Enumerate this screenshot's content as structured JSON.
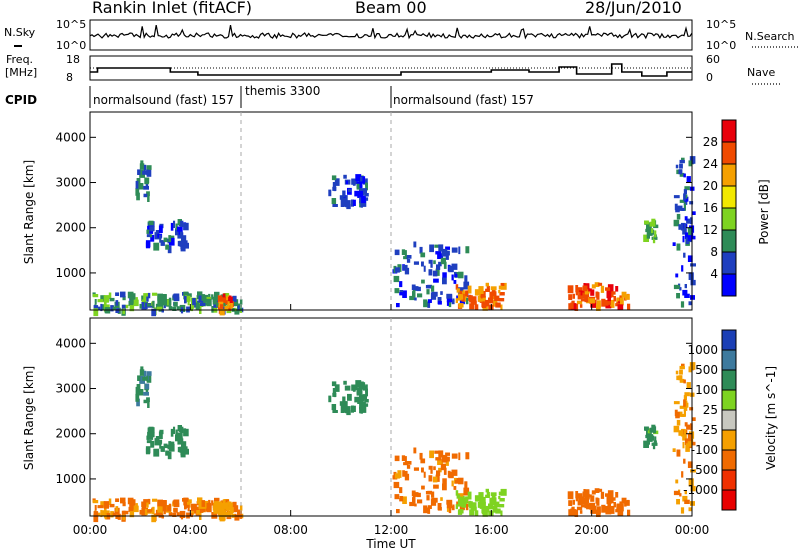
{
  "header": {
    "station": "Rankin Inlet (fitACF)",
    "beam": "Beam 00",
    "date": "28/Jun/2010"
  },
  "noise_panel": {
    "left_label": "N.Sky",
    "right_label": "N.Search",
    "left_ticks": [
      "10^5",
      "10^0"
    ],
    "right_ticks": [
      "10^5",
      "10^0"
    ]
  },
  "freq_panel": {
    "left_label": "Freq.",
    "left_unit": "[MHz]",
    "right_label": "Nave",
    "left_ticks": [
      "18",
      "8"
    ],
    "right_ticks": [
      "60",
      "0"
    ]
  },
  "cpid_panel": {
    "label": "CPID",
    "segments": [
      {
        "start_hour": 0,
        "end_hour": 6,
        "name": "normalsound (fast) 157"
      },
      {
        "start_hour": 6,
        "end_hour": 12,
        "name": "themis 3300"
      },
      {
        "start_hour": 12,
        "end_hour": 24,
        "name": "normalsound (fast) 157"
      }
    ]
  },
  "power_colorbar": {
    "title": "Power [dB]",
    "labels": [
      "28",
      "24",
      "20",
      "16",
      "12",
      "8",
      "4"
    ],
    "colors": [
      "#e8000b",
      "#f04a00",
      "#f5a000",
      "#f2e800",
      "#7ed321",
      "#2e8b57",
      "#1f3fbf",
      "#0000ff"
    ]
  },
  "velocity_colorbar": {
    "title": "Velocity [m s^-1]",
    "labels": [
      "1000",
      "500",
      "100",
      "25",
      "-25",
      "-100",
      "-500",
      "-1000"
    ],
    "colors": [
      "#1b3fb5",
      "#3d7a9e",
      "#2e8b57",
      "#7ed321",
      "#c8c8c0",
      "#f5a000",
      "#f06a00",
      "#f03000",
      "#e80000"
    ]
  },
  "chart_data": {
    "type": "heatmap",
    "panels": [
      {
        "name": "power",
        "colorbar": "Power [dB]"
      },
      {
        "name": "velocity",
        "colorbar": "Velocity [m s^-1]"
      }
    ],
    "x_ticks": [
      "00:00",
      "04:00",
      "08:00",
      "12:00",
      "16:00",
      "20:00",
      "00:00"
    ],
    "xlabel": "Time UT",
    "ylabel": "Slant Range [km]",
    "y_ticks": [
      1000,
      2000,
      3000,
      4000
    ],
    "xlim": [
      0,
      24
    ],
    "ylim": [
      180,
      4560
    ],
    "patches": [
      {
        "t": 0.1,
        "t2": 6.0,
        "r": 200,
        "r2": 600,
        "power": 10,
        "vel": -120
      },
      {
        "t": 1.8,
        "t2": 2.3,
        "r": 2700,
        "r2": 3500,
        "power": 8,
        "vel": 400
      },
      {
        "t": 2.2,
        "t2": 3.8,
        "r": 1600,
        "r2": 2200,
        "power": 6,
        "vel": 300
      },
      {
        "t": 5.0,
        "t2": 5.6,
        "r": 200,
        "r2": 600,
        "power": 26,
        "vel": -60
      },
      {
        "t": 9.5,
        "t2": 11.0,
        "r": 2500,
        "r2": 3200,
        "power": 6,
        "vel": 250
      },
      {
        "t": 12.0,
        "t2": 15.0,
        "r": 300,
        "r2": 1700,
        "power": 6,
        "vel": -150
      },
      {
        "t": 14.5,
        "t2": 16.5,
        "r": 300,
        "r2": 800,
        "power": 24,
        "vel": 60
      },
      {
        "t": 19.0,
        "t2": 21.5,
        "r": 300,
        "r2": 800,
        "power": 26,
        "vel": -250
      },
      {
        "t": 22.0,
        "t2": 22.5,
        "r": 1800,
        "r2": 2200,
        "power": 12,
        "vel": 150
      },
      {
        "t": 23.2,
        "t2": 24.0,
        "r": 300,
        "r2": 3600,
        "power": 6,
        "vel": -80
      }
    ]
  }
}
